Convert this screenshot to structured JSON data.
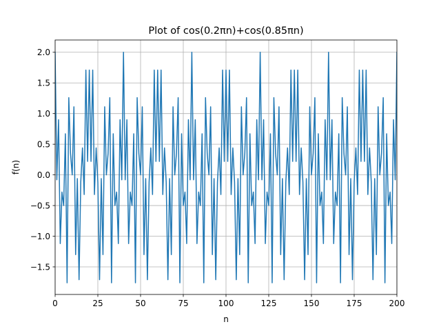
{
  "chart_data": {
    "type": "line",
    "title": "Plot of cos(0.2πn)+cos(0.85πn)",
    "xlabel": "n",
    "ylabel": "f(n)",
    "xlim": [
      0,
      200
    ],
    "ylim": [
      -1.95,
      2.2
    ],
    "xticks": [
      0,
      25,
      50,
      75,
      100,
      125,
      150,
      175,
      200
    ],
    "yticks": [
      -1.5,
      -1.0,
      -0.5,
      0.0,
      0.5,
      1.0,
      1.5,
      2.0
    ],
    "ytick_labels": [
      "−1.5",
      "−1.0",
      "−0.5",
      "0.0",
      "0.5",
      "1.0",
      "1.5",
      "2.0"
    ],
    "grid": true,
    "series": [
      {
        "color": "#1f77b4",
        "x": [
          0,
          1,
          2,
          3,
          4,
          5,
          6,
          7,
          8,
          9,
          10,
          11,
          12,
          13,
          14,
          15,
          16,
          17,
          18,
          19,
          20,
          21,
          22,
          23,
          24,
          25,
          26,
          27,
          28,
          29,
          30,
          31,
          32,
          33,
          34,
          35,
          36,
          37,
          38,
          39,
          40,
          41,
          42,
          43,
          44,
          45,
          46,
          47,
          48,
          49,
          50,
          51,
          52,
          53,
          54,
          55,
          56,
          57,
          58,
          59,
          60,
          61,
          62,
          63,
          64,
          65,
          66,
          67,
          68,
          69,
          70,
          71,
          72,
          73,
          74,
          75,
          76,
          77,
          78,
          79,
          80,
          81,
          82,
          83,
          84,
          85,
          86,
          87,
          88,
          89,
          90,
          91,
          92,
          93,
          94,
          95,
          96,
          97,
          98,
          99,
          100,
          101,
          102,
          103,
          104,
          105,
          106,
          107,
          108,
          109,
          110,
          111,
          112,
          113,
          114,
          115,
          116,
          117,
          118,
          119,
          120,
          121,
          122,
          123,
          124,
          125,
          126,
          127,
          128,
          129,
          130,
          131,
          132,
          133,
          134,
          135,
          136,
          137,
          138,
          139,
          140,
          141,
          142,
          143,
          144,
          145,
          146,
          147,
          148,
          149,
          150,
          151,
          152,
          153,
          154,
          155,
          156,
          157,
          158,
          159,
          160,
          161,
          162,
          163,
          164,
          165,
          166,
          167,
          168,
          169,
          170,
          171,
          172,
          173,
          174,
          175,
          176,
          177,
          178,
          179,
          180,
          181,
          182,
          183,
          184,
          185,
          186,
          187,
          188,
          189,
          190,
          191,
          192,
          193,
          194,
          195,
          196,
          197,
          198,
          199,
          200
        ],
        "y": [
          2.0,
          -0.08,
          0.9,
          -1.12,
          -0.28,
          -0.5,
          0.67,
          -1.76,
          1.26,
          0.35,
          0.0,
          1.11,
          -1.3,
          -0.06,
          -1.71,
          -0.12,
          0.44,
          -0.32,
          1.71,
          0.22,
          1.71,
          0.22,
          1.71,
          -0.32,
          0.44,
          -0.12,
          -1.71,
          -0.06,
          -1.3,
          1.11,
          0.0,
          0.35,
          1.26,
          -1.76,
          0.67,
          -0.5,
          -0.28,
          -1.12,
          0.9,
          -0.08,
          2.0,
          -0.08,
          0.9,
          -1.12,
          -0.28,
          -0.5,
          0.67,
          -1.76,
          1.26,
          0.35,
          0.0,
          1.11,
          -1.3,
          -0.06,
          -1.71,
          -0.12,
          0.44,
          -0.32,
          1.71,
          0.22,
          1.71,
          0.22,
          1.71,
          -0.32,
          0.44,
          -0.12,
          -1.71,
          -0.06,
          -1.3,
          1.11,
          0.0,
          0.35,
          1.26,
          -1.76,
          0.67,
          -0.5,
          -0.28,
          -1.12,
          0.9,
          -0.08,
          2.0,
          -0.08,
          0.9,
          -1.12,
          -0.28,
          -0.5,
          0.67,
          -1.76,
          1.26,
          0.35,
          0.0,
          1.11,
          -1.3,
          -0.06,
          -1.71,
          -0.12,
          0.44,
          -0.32,
          1.71,
          0.22,
          1.71,
          0.22,
          1.71,
          -0.32,
          0.44,
          -0.12,
          -1.71,
          -0.06,
          -1.3,
          1.11,
          0.0,
          0.35,
          1.26,
          -1.76,
          0.67,
          -0.5,
          -0.28,
          -1.12,
          0.9,
          -0.08,
          2.0,
          -0.08,
          0.9,
          -1.12,
          -0.28,
          -0.5,
          0.67,
          -1.76,
          1.26,
          0.35,
          0.0,
          1.11,
          -1.3,
          -0.06,
          -1.71,
          -0.12,
          0.44,
          -0.32,
          1.71,
          0.22,
          1.71,
          0.22,
          1.71,
          -0.32,
          0.44,
          -0.12,
          -1.71,
          -0.06,
          -1.3,
          1.11,
          0.0,
          0.35,
          1.26,
          -1.76,
          0.67,
          -0.5,
          -0.28,
          -1.12,
          0.9,
          -0.08,
          2.0,
          -0.08,
          0.9,
          -1.12,
          -0.28,
          -0.5,
          0.67,
          -1.76,
          1.26,
          0.35,
          0.0,
          1.11,
          -1.3,
          -0.06,
          -1.71,
          -0.12,
          0.44,
          -0.32,
          1.71,
          0.22,
          1.71,
          0.22,
          1.71,
          -0.32,
          0.44,
          -0.12,
          -1.71,
          -0.06,
          -1.3,
          1.11,
          0.0,
          0.35,
          1.26,
          -1.76,
          0.67,
          -0.5,
          -0.28,
          -1.12,
          0.9,
          -0.08,
          2.0
        ]
      }
    ]
  }
}
